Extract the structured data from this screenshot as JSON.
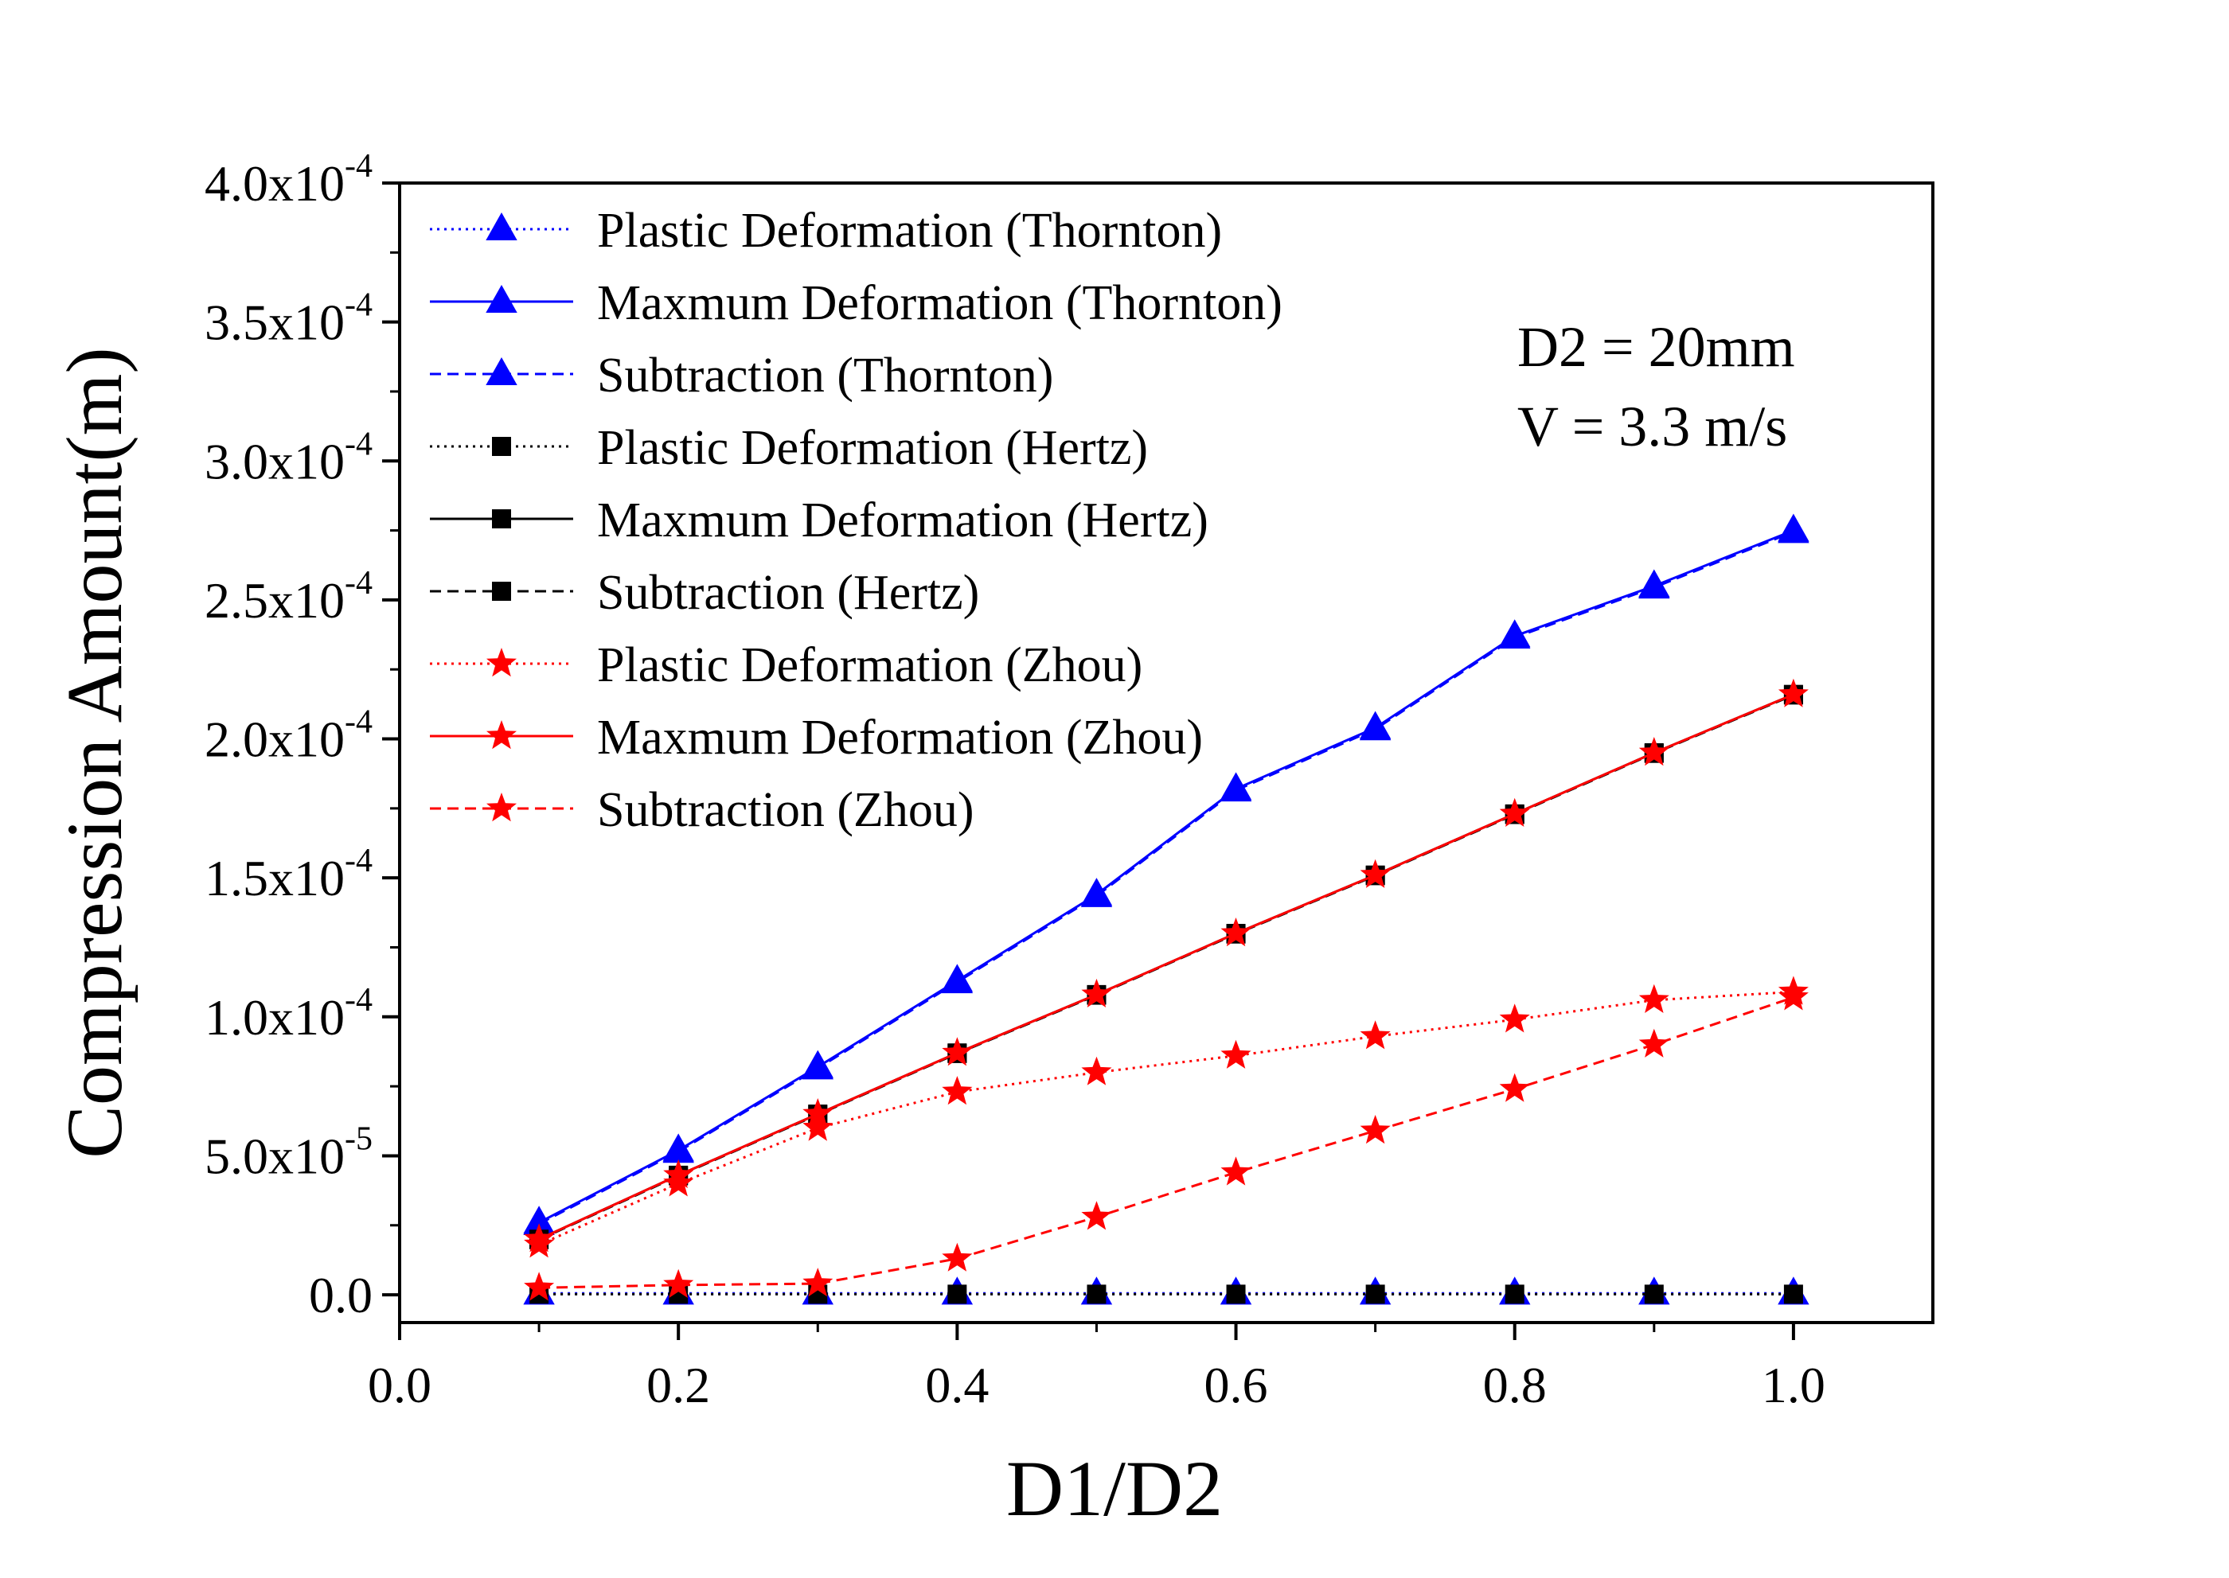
{
  "chart_data": {
    "type": "line",
    "xlabel": "D1/D2",
    "ylabel": "Compression Amount(m)",
    "xlim": [
      0.0,
      1.1
    ],
    "ylim": [
      -1e-05,
      0.0004
    ],
    "x_ticks": [
      0.0,
      0.2,
      0.4,
      0.6,
      0.8,
      1.0
    ],
    "x_tick_labels": [
      "0.0",
      "0.2",
      "0.4",
      "0.6",
      "0.8",
      "1.0"
    ],
    "y_ticks": [
      0.0,
      5e-05,
      0.0001,
      0.00015,
      0.0002,
      0.00025,
      0.0003,
      0.00035,
      0.0004
    ],
    "y_tick_labels": [
      {
        "mantissa": "0.0",
        "exponent": ""
      },
      {
        "mantissa": "5.0x10",
        "exponent": "-5"
      },
      {
        "mantissa": "1.0x10",
        "exponent": "-4"
      },
      {
        "mantissa": "1.5x10",
        "exponent": "-4"
      },
      {
        "mantissa": "2.0x10",
        "exponent": "-4"
      },
      {
        "mantissa": "2.5x10",
        "exponent": "-4"
      },
      {
        "mantissa": "3.0x10",
        "exponent": "-4"
      },
      {
        "mantissa": "3.5x10",
        "exponent": "-4"
      },
      {
        "mantissa": "4.0x10",
        "exponent": "-4"
      }
    ],
    "grid": false,
    "legend_position": "top-left",
    "annotations": [
      "D2 = 20mm",
      "V = 3.3 m/s"
    ],
    "x": [
      0.1,
      0.2,
      0.3,
      0.4,
      0.5,
      0.6,
      0.7,
      0.8,
      0.9,
      1.0
    ],
    "series": [
      {
        "name": "Plastic Deformation  (Thornton)",
        "color": "#0000ff",
        "marker": "triangle",
        "line": "dotted",
        "values": [
          5e-07,
          5e-07,
          5e-07,
          5e-07,
          5e-07,
          5e-07,
          5e-07,
          5e-07,
          5e-07,
          5e-07
        ]
      },
      {
        "name": "Maxmum Deformation  (Thornton)",
        "color": "#0000ff",
        "marker": "triangle",
        "line": "solid",
        "values": [
          2.6e-05,
          5.2e-05,
          8.2e-05,
          0.000113,
          0.000144,
          0.000182,
          0.000204,
          0.000237,
          0.000255,
          0.000275
        ]
      },
      {
        "name": "Subtraction  (Thornton)",
        "color": "#0000ff",
        "marker": "triangle",
        "line": "dashed",
        "values": [
          2.55e-05,
          5.15e-05,
          8.15e-05,
          0.0001125,
          0.0001435,
          0.0001815,
          0.0002035,
          0.0002365,
          0.0002545,
          0.0002745
        ]
      },
      {
        "name": "Plastic Deformation  (Hertz)",
        "color": "#000000",
        "marker": "square",
        "line": "dotted",
        "values": [
          2e-07,
          2e-07,
          2e-07,
          2e-07,
          2e-07,
          2e-07,
          2e-07,
          2e-07,
          2e-07,
          2e-07
        ]
      },
      {
        "name": "Maxmum Deformation  (Hertz)",
        "color": "#000000",
        "marker": "square",
        "line": "solid",
        "values": [
          2e-05,
          4.3e-05,
          6.5e-05,
          8.7e-05,
          0.000108,
          0.00013,
          0.000151,
          0.000173,
          0.000195,
          0.000216
        ]
      },
      {
        "name": "Subtraction  (Hertz)",
        "color": "#000000",
        "marker": "square",
        "line": "dashed",
        "values": [
          1.98e-05,
          4.28e-05,
          6.48e-05,
          8.68e-05,
          0.0001078,
          0.0001298,
          0.0001508,
          0.0001728,
          0.0001948,
          0.0002158
        ]
      },
      {
        "name": "Plastic Deformation  (Zhou)",
        "color": "#ff0000",
        "marker": "star",
        "line": "dotted",
        "values": [
          1.8e-05,
          4e-05,
          6e-05,
          7.3e-05,
          8e-05,
          8.6e-05,
          9.3e-05,
          9.9e-05,
          0.000106,
          0.000109
        ]
      },
      {
        "name": "Maxmum Deformation  (Zhou)",
        "color": "#ff0000",
        "marker": "star",
        "line": "solid",
        "values": [
          2e-05,
          4.3e-05,
          6.5e-05,
          8.7e-05,
          0.000108,
          0.00013,
          0.000151,
          0.000173,
          0.000195,
          0.000216
        ]
      },
      {
        "name": "Subtraction  (Zhou)",
        "color": "#ff0000",
        "marker": "star",
        "line": "dashed",
        "values": [
          2.5e-06,
          3.5e-06,
          4e-06,
          1.3e-05,
          2.8e-05,
          4.4e-05,
          5.9e-05,
          7.4e-05,
          9e-05,
          0.000107
        ]
      }
    ]
  }
}
